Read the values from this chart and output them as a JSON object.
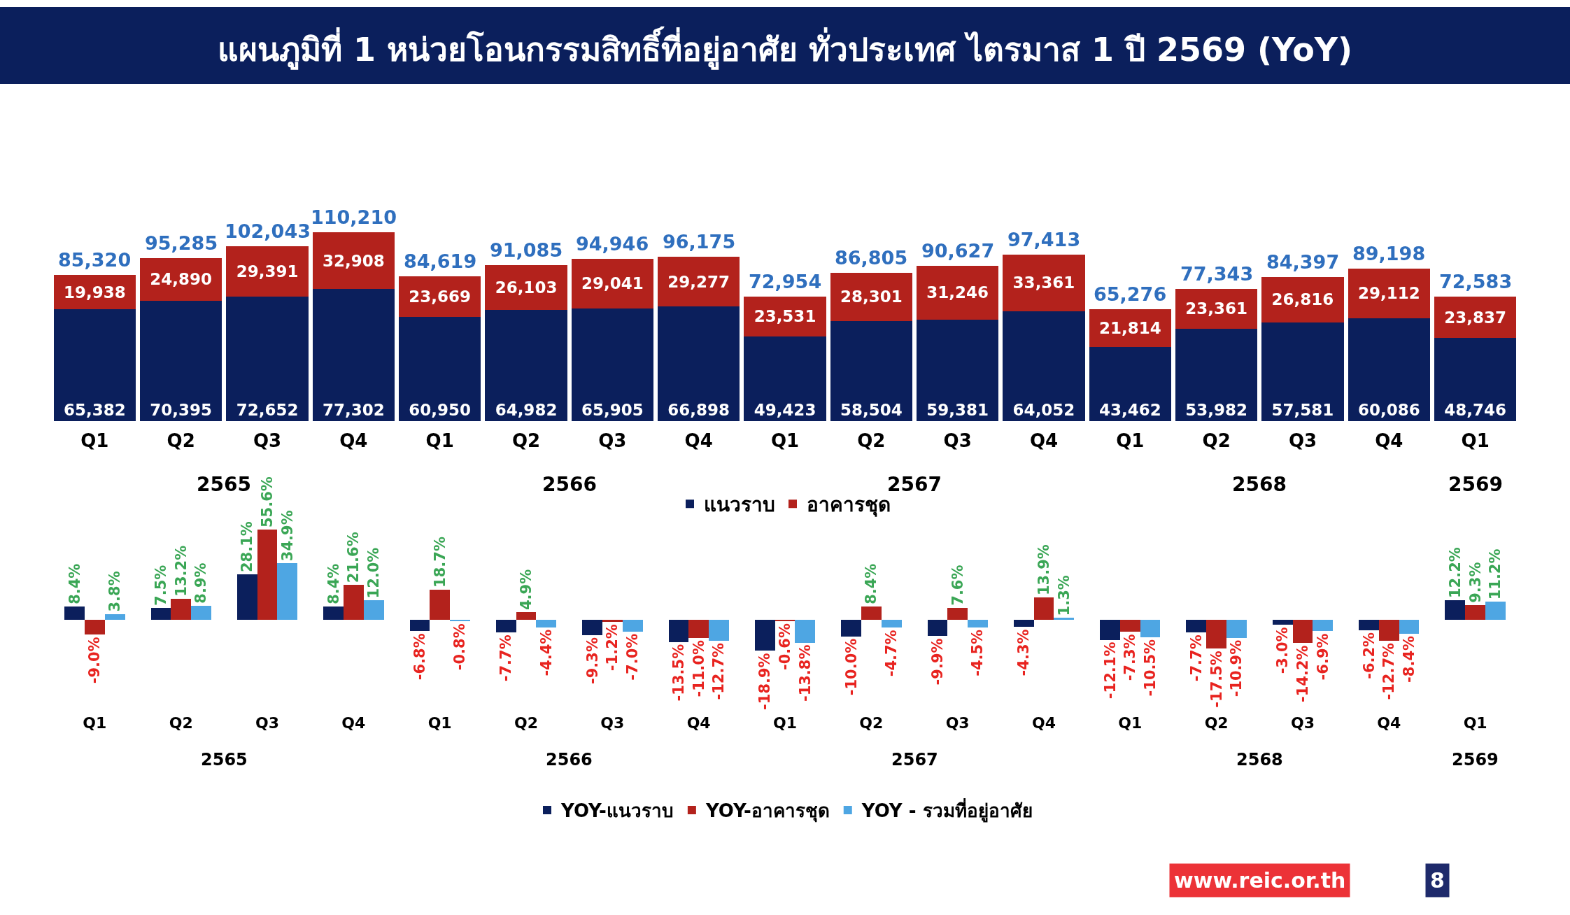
{
  "chart_data": [
    {
      "type": "bar",
      "title": "แผนภูมิที่ 1 หน่วยโอนกรรมสิทธิ์ที่อยู่อาศัย ทั่วประเทศ ไตรมาส 1 ปี 2569 (YoY)",
      "stacked": true,
      "legend": "bottom",
      "categories": [
        "Q1",
        "Q2",
        "Q3",
        "Q4",
        "Q1",
        "Q2",
        "Q3",
        "Q4",
        "Q1",
        "Q2",
        "Q3",
        "Q4",
        "Q1",
        "Q2",
        "Q3",
        "Q4",
        "Q1"
      ],
      "annotations": [
        "2565",
        "2566",
        "2567",
        "2568",
        "2569"
      ],
      "series": [
        {
          "name": "แนวราบ",
          "color": "#0b1f5c",
          "values": [
            65382,
            70395,
            72652,
            77302,
            60950,
            64982,
            65905,
            66898,
            49423,
            58504,
            59381,
            64052,
            43462,
            53982,
            57581,
            60086,
            48746
          ],
          "value_labels": [
            "65,382",
            "70,395",
            "72,652",
            "77,302",
            "60,950",
            "64,982",
            "65,905",
            "66,898",
            "49,423",
            "58,504",
            "59,381",
            "64,052",
            "43,462",
            "53,982",
            "57,581",
            "60,086",
            "48,746"
          ]
        },
        {
          "name": "อาคารชุด",
          "color": "#b3221c",
          "values": [
            19938,
            24890,
            29391,
            32908,
            23669,
            26103,
            29041,
            29277,
            23531,
            28301,
            31246,
            33361,
            21814,
            23361,
            26816,
            29112,
            23837
          ],
          "value_labels": [
            "19,938",
            "24,890",
            "29,391",
            "32,908",
            "23,669",
            "26,103",
            "29,041",
            "29,277",
            "23,531",
            "28,301",
            "31,246",
            "33,361",
            "21,814",
            "23,361",
            "26,816",
            "29,112",
            "23,837"
          ]
        }
      ],
      "totals": [
        "85,320",
        "95,285",
        "102,043",
        "110,210",
        "84,619",
        "91,085",
        "94,946",
        "96,175",
        "72,954",
        "86,805",
        "90,627",
        "97,413",
        "65,276",
        "77,343",
        "84,397",
        "89,198",
        "72,583"
      ]
    },
    {
      "type": "bar",
      "legend": "bottom",
      "categories": [
        "Q1",
        "Q2",
        "Q3",
        "Q4",
        "Q1",
        "Q2",
        "Q3",
        "Q4",
        "Q1",
        "Q2",
        "Q3",
        "Q4",
        "Q1",
        "Q2",
        "Q3",
        "Q4",
        "Q1"
      ],
      "annotations": [
        "2565",
        "2566",
        "2567",
        "2568",
        "2569",
        "www.reic.or.th",
        "8"
      ],
      "series": [
        {
          "name": "YOY-แนวราบ",
          "color": "#0b1f5c",
          "values": [
            8.4,
            7.5,
            28.1,
            8.4,
            -6.8,
            -7.7,
            -9.3,
            -13.5,
            -18.9,
            -10.0,
            -9.9,
            -4.3,
            -12.1,
            -7.7,
            -3.0,
            -6.2,
            12.2
          ],
          "value_labels": [
            "8.4%",
            "7.5%",
            "28.1%",
            "8.4%",
            "-6.8%",
            "-7.7%",
            "-9.3%",
            "-13.5%",
            "-18.9%",
            "-10.0%",
            "-9.9%",
            "-4.3%",
            "-12.1%",
            "-7.7%",
            "-3.0%",
            "-6.2%",
            "12.2%"
          ]
        },
        {
          "name": "YOY-อาคารชุด",
          "color": "#b3221c",
          "values": [
            -9.0,
            13.2,
            55.6,
            21.6,
            18.7,
            4.9,
            -1.2,
            -11.0,
            -0.6,
            8.4,
            7.6,
            13.9,
            -7.3,
            -17.5,
            -14.2,
            -12.7,
            9.3
          ],
          "value_labels": [
            "-9.0%",
            "13.2%",
            "55.6%",
            "21.6%",
            "18.7%",
            "4.9%",
            "-1.2%",
            "-11.0%",
            "-0.6%",
            "8.4%",
            "7.6%",
            "13.9%",
            "-7.3%",
            "-17.5%",
            "-14.2%",
            "-12.7%",
            "9.3%"
          ]
        },
        {
          "name": "YOY - รวมที่อยู่อาศัย",
          "color": "#4ea6e3",
          "values": [
            3.8,
            8.9,
            34.9,
            12.0,
            -0.8,
            -4.4,
            -7.0,
            -12.7,
            -13.8,
            -4.7,
            -4.5,
            1.3,
            -10.5,
            -10.9,
            -6.9,
            -8.4,
            11.2
          ],
          "value_labels": [
            "3.8%",
            "8.9%",
            "34.9%",
            "12.0%",
            "-0.8%",
            "-4.4%",
            "-7.0%",
            "-12.7%",
            "-13.8%",
            "-4.7%",
            "-4.5%",
            "1.3%",
            "-10.5%",
            "-10.9%",
            "-6.9%",
            "-8.4%",
            "11.2%"
          ]
        }
      ]
    }
  ]
}
